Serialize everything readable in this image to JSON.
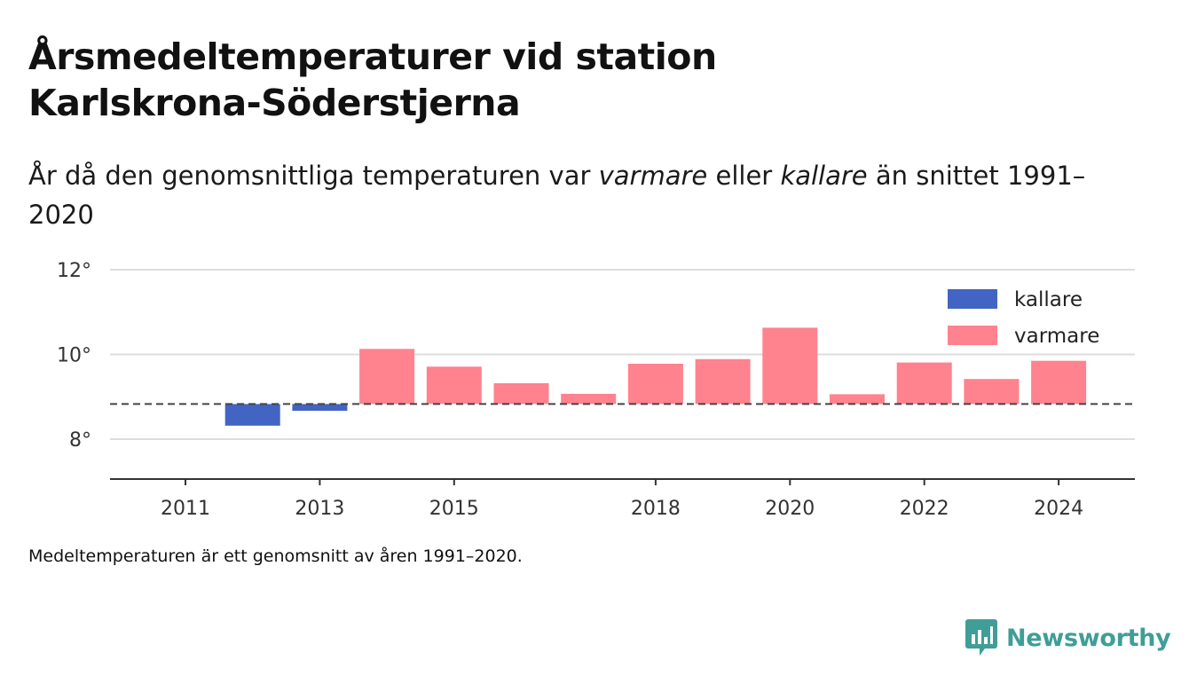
{
  "title": "Årsmedeltemperaturer vid station Karlskrona-Söderstjerna",
  "subtitle": {
    "part1": "År då den genomsnittliga temperaturen var ",
    "warm_word": "varmare",
    "part2": " eller ",
    "cold_word": "kallare",
    "part3": " än snittet 1991–2020"
  },
  "footnote": "Medeltemperaturen är ett genomsnitt av åren 1991–2020.",
  "brand": {
    "name": "Newsworthy",
    "icon": "newsworthy-chart-icon",
    "color": "#3f9e97"
  },
  "colors": {
    "kallare": "#4264c2",
    "varmare": "#ff828f",
    "grid": "#dddddd",
    "axis": "#333333",
    "reference": "#444444"
  },
  "chart_data": {
    "type": "bar",
    "title": "Årsmedeltemperaturer vid station Karlskrona-Söderstjerna",
    "baseline": 8.83,
    "x": [
      2011,
      2012,
      2013,
      2014,
      2015,
      2016,
      2017,
      2018,
      2019,
      2020,
      2021,
      2022,
      2023,
      2024
    ],
    "values": [
      8.83,
      8.32,
      8.67,
      10.13,
      9.71,
      9.32,
      9.07,
      9.78,
      9.89,
      10.63,
      9.06,
      9.81,
      9.42,
      9.85
    ],
    "categories_by_value": {
      "below_baseline": "kallare",
      "above_baseline": "varmare"
    },
    "xticks": [
      2011,
      2013,
      2015,
      2018,
      2020,
      2022,
      2024
    ],
    "yticks": [
      {
        "value": 8,
        "label": "8°"
      },
      {
        "value": 10,
        "label": "10°"
      },
      {
        "value": 12,
        "label": "12°"
      }
    ],
    "ylim": [
      7.1,
      12.2
    ],
    "grid": true,
    "legend": {
      "placement": "top-right",
      "entries": [
        {
          "name": "kallare",
          "color": "#4264c2"
        },
        {
          "name": "varmare",
          "color": "#ff828f"
        }
      ]
    }
  }
}
